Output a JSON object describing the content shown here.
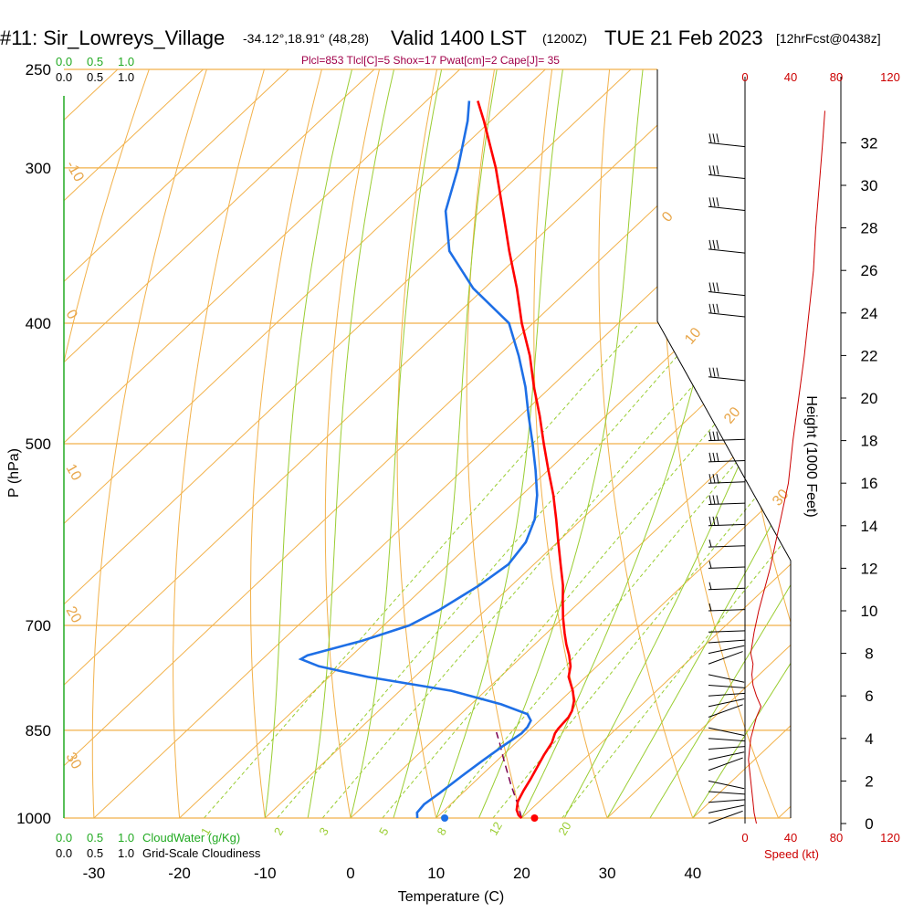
{
  "title": {
    "station": "#11: Sir_Lowreys_Village",
    "coords": "-34.12°,18.91° (48,28)",
    "valid": "Valid 1400 LST",
    "zulu": "(1200Z)",
    "date": "TUE 21 Feb 2023",
    "forecast": "[12hrFcst@0438z]"
  },
  "params": "Plcl=853 Tlcl[C]=5 Shox=17 Pwat[cm]=2 Cape[J]= 35",
  "cloud_scale": {
    "cloudwater_ticks": [
      "0.0",
      "0.5",
      "1.0"
    ],
    "cloudiness_ticks": [
      "0.0",
      "0.5",
      "1.0"
    ],
    "cloudwater_label": "CloudWater (g/Kg)",
    "cloudiness_label": "Grid-Scale Cloudiness"
  },
  "colors": {
    "temperature": "#ff0000",
    "dewpoint": "#1e6fe6",
    "isobar": "#f2b14a",
    "isotherm": "#f2b14a",
    "dry_adiabat": "#f2b14a",
    "moist_adiabat": "#9acd32",
    "mixing_ratio": "#9acd32",
    "wind_speed": "#cc0000",
    "params": "#a0004a",
    "cloud": "#22aa22"
  },
  "chart_data": {
    "type": "line",
    "subtype": "skew-t log-p sounding",
    "xlabel": "Temperature (C)",
    "ylabel": "P (hPa)",
    "x_ticks": [
      -30,
      -20,
      -10,
      0,
      10,
      20,
      30,
      40
    ],
    "pressure_ticks": [
      1000,
      850,
      700,
      500,
      400,
      300,
      250
    ],
    "pressure_range": [
      1000,
      250
    ],
    "isotherm_labels": [
      "30",
      "20",
      "10",
      "0",
      "-10",
      "-20",
      "-30",
      "-10",
      "0",
      "10",
      "20",
      "30"
    ],
    "isotherm_label_temps": [
      -30,
      -20,
      -10,
      0,
      10,
      20,
      30,
      10,
      0,
      -10,
      -20,
      -30
    ],
    "mixing_ratio_values": [
      1,
      2,
      3,
      5,
      8,
      12,
      20
    ],
    "series": [
      {
        "name": "Temperature",
        "pressure": [
          1000,
          995,
          985,
          970,
          950,
          930,
          910,
          890,
          870,
          855,
          848,
          840,
          830,
          820,
          805,
          790,
          780,
          770,
          755,
          740,
          725,
          710,
          690,
          670,
          650,
          625,
          600,
          575,
          550,
          525,
          500,
          475,
          450,
          425,
          400,
          375,
          350,
          325,
          300,
          275,
          265
        ],
        "values": [
          20,
          19.3,
          18.4,
          17.5,
          16.8,
          16.2,
          15.5,
          14.8,
          14.2,
          13.4,
          13.2,
          13.1,
          13.0,
          12.6,
          11.6,
          10.2,
          9.1,
          8.0,
          6.9,
          5.4,
          3.7,
          2.1,
          0.0,
          -2.0,
          -4.0,
          -6.9,
          -9.9,
          -13.0,
          -16.3,
          -20.0,
          -23.8,
          -27.7,
          -32.0,
          -36.3,
          -41.3,
          -46.2,
          -51.7,
          -57.4,
          -63.6,
          -70.8,
          -74.0
        ]
      },
      {
        "name": "Dewpoint",
        "pressure": [
          1000,
          990,
          975,
          955,
          925,
          900,
          875,
          855,
          845,
          835,
          825,
          810,
          790,
          770,
          755,
          745,
          740,
          720,
          700,
          680,
          650,
          625,
          600,
          575,
          550,
          525,
          500,
          475,
          450,
          425,
          400,
          375,
          350,
          325,
          300,
          275,
          265
        ],
        "values": [
          7.8,
          7.1,
          6.9,
          7.3,
          7.8,
          8.3,
          8.9,
          9.5,
          9.4,
          9.0,
          7.8,
          3.5,
          -4.0,
          -15.5,
          -22.5,
          -25.5,
          -25.2,
          -20.6,
          -17.0,
          -15.4,
          -13.8,
          -13.0,
          -13.7,
          -15.5,
          -18.2,
          -21.5,
          -25.1,
          -29.0,
          -33.0,
          -37.6,
          -42.8,
          -51.3,
          -58.7,
          -64.1,
          -68.0,
          -72.7,
          -75.0
        ]
      },
      {
        "name": "Parcel",
        "pressure": [
          1000,
          970,
          940,
          900,
          870,
          853
        ],
        "values": [
          20.0,
          17.4,
          14.6,
          10.9,
          8.1,
          6.4
        ]
      }
    ],
    "surface_markers": {
      "temperature": 21.5,
      "dewpoint": 11
    },
    "height_axis": {
      "label": "Height (1000 Feet)",
      "ticks": [
        0,
        2,
        4,
        6,
        8,
        10,
        12,
        14,
        16,
        18,
        20,
        22,
        24,
        26,
        28,
        30,
        32
      ]
    },
    "wind_speed_axis": {
      "label": "Speed (kt)",
      "ticks": [
        0,
        40,
        80,
        120
      ],
      "top_ticks": [
        0,
        40,
        80,
        120
      ]
    },
    "wind_speed_profile": {
      "height_kft": [
        0,
        0.5,
        1,
        2,
        3,
        4,
        5,
        5.5,
        6,
        6.5,
        7,
        7.5,
        8,
        9,
        10,
        12,
        14,
        16,
        18,
        20,
        22,
        24,
        26,
        28,
        30,
        32,
        33.5
      ],
      "speed_kt": [
        10,
        8,
        7,
        5,
        3,
        5,
        10,
        14,
        10,
        7,
        6,
        7,
        5,
        8,
        12,
        22,
        30,
        38,
        42,
        47,
        52,
        56,
        60,
        62,
        65,
        68,
        70
      ]
    },
    "wind_barb_heights_kft": [
      0,
      0.5,
      1,
      1.5,
      2,
      2.5,
      3,
      3.5,
      4,
      4.5,
      5,
      5.5,
      6,
      6.5,
      7,
      7.5,
      8,
      8.5,
      9,
      10,
      11,
      12,
      13,
      14,
      15,
      16,
      17,
      18,
      21,
      24,
      25,
      27,
      29,
      30.5,
      32
    ]
  }
}
